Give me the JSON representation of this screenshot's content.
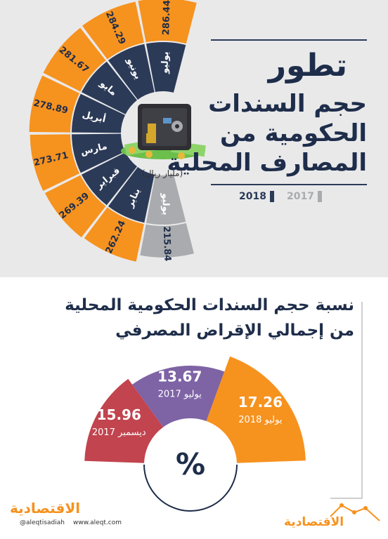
{
  "title": {
    "line1": "تطور",
    "line2": "حجم السندات",
    "line3": "الحكومية من",
    "line4": "المصارف المحلية"
  },
  "legend": {
    "year2018": "2018",
    "year2017": "2017"
  },
  "unit": "(مليار ريال)",
  "chart_data": [
    {
      "type": "bar",
      "title": "تطور حجم السندات الحكومية من المصارف المحلية",
      "unit": "(مليار ريال)",
      "series": [
        {
          "name": "2017",
          "color": "#a9abae",
          "points": [
            {
              "label": "يوليو",
              "value": 215.84
            }
          ]
        },
        {
          "name": "2018",
          "color": "#f6921e",
          "points": [
            {
              "label": "يناير",
              "value": 262.24
            },
            {
              "label": "فبراير",
              "value": 269.39
            },
            {
              "label": "مارس",
              "value": 273.71
            },
            {
              "label": "أبريل",
              "value": 278.89
            },
            {
              "label": "مايو",
              "value": 281.67
            },
            {
              "label": "يونيو",
              "value": 284.29
            },
            {
              "label": "يوليو",
              "value": 286.44
            }
          ]
        }
      ]
    },
    {
      "type": "pie",
      "title": "نسبة حجم السندات الحكومية المحلية من إجمالي الإقراض المصرفي",
      "center_label": "%",
      "slices": [
        {
          "value": 15.96,
          "label": "ديسمبر 2017",
          "color": "#c1444e"
        },
        {
          "value": 13.67,
          "label": "يوليو 2017",
          "color": "#7e63a5"
        },
        {
          "value": 17.26,
          "label": "يوليو 2018",
          "color": "#f6921e"
        }
      ]
    }
  ],
  "footer": {
    "social": "@aleqtisadiah",
    "web": "www.aleqt.com",
    "logo": "الاقتصادية"
  },
  "colors": {
    "navy": "#2b3a57",
    "orange": "#f6921e",
    "gray": "#a9abae",
    "red": "#c1444e",
    "purple": "#7e63a5"
  }
}
